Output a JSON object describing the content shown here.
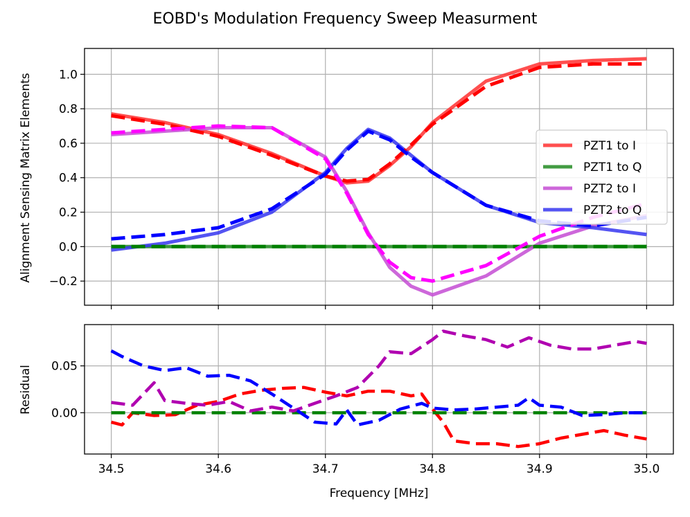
{
  "chart_data": [
    {
      "type": "line",
      "title": "EOBD's Modulation Frequency Sweep Measurment",
      "xlabel": "",
      "ylabel": "Alignment Sensing Matrix Elements",
      "xlim": [
        34.475,
        35.025
      ],
      "ylim": [
        -0.34,
        1.15
      ],
      "grid": true,
      "legend_position": "center-right",
      "xticks": [
        34.5,
        34.6,
        34.7,
        34.8,
        34.9,
        35.0
      ],
      "xtick_labels": [
        "34.5",
        "34.6",
        "34.7",
        "34.8",
        "34.9",
        "35.0"
      ],
      "yticks": [
        -0.2,
        0.0,
        0.2,
        0.4,
        0.6,
        0.8,
        1.0
      ],
      "ytick_labels": [
        "−0.2",
        "0.0",
        "0.2",
        "0.4",
        "0.6",
        "0.8",
        "1.0"
      ],
      "x": [
        34.5,
        34.55,
        34.6,
        34.65,
        34.7,
        34.72,
        34.74,
        34.76,
        34.78,
        34.8,
        34.85,
        34.9,
        34.95,
        35.0
      ],
      "series": [
        {
          "name": "PZT1 to I",
          "legend": true,
          "style": "solid",
          "color": "#ff3030",
          "values": [
            0.77,
            0.72,
            0.65,
            0.54,
            0.41,
            0.37,
            0.38,
            0.47,
            0.58,
            0.72,
            0.96,
            1.06,
            1.08,
            1.09
          ]
        },
        {
          "name": "PZT1 to Q",
          "legend": true,
          "style": "solid",
          "color": "#228b22",
          "values": [
            0.0,
            0.0,
            0.0,
            0.0,
            0.0,
            0.0,
            0.0,
            0.0,
            0.0,
            0.0,
            0.0,
            0.0,
            0.0,
            0.0
          ]
        },
        {
          "name": "PZT2 to I",
          "legend": true,
          "style": "solid",
          "color": "#c44cd4",
          "values": [
            0.65,
            0.67,
            0.69,
            0.69,
            0.52,
            0.32,
            0.08,
            -0.12,
            -0.23,
            -0.28,
            -0.17,
            0.02,
            0.12,
            0.18
          ]
        },
        {
          "name": "PZT2 to Q",
          "legend": true,
          "style": "solid",
          "color": "#3636f0",
          "values": [
            -0.02,
            0.02,
            0.08,
            0.2,
            0.43,
            0.57,
            0.68,
            0.63,
            0.53,
            0.43,
            0.24,
            0.14,
            0.11,
            0.07
          ]
        },
        {
          "name": "PZT1 to I fit",
          "legend": false,
          "style": "dashed",
          "color": "#ff0000",
          "values": [
            0.76,
            0.71,
            0.64,
            0.53,
            0.41,
            0.38,
            0.39,
            0.48,
            0.59,
            0.71,
            0.93,
            1.04,
            1.06,
            1.06
          ]
        },
        {
          "name": "PZT1 to Q fit",
          "legend": false,
          "style": "dashed",
          "color": "#008000",
          "values": [
            0.0,
            0.0,
            0.0,
            0.0,
            0.0,
            0.0,
            0.0,
            0.0,
            0.0,
            0.0,
            0.0,
            0.0,
            0.0,
            0.0
          ]
        },
        {
          "name": "PZT2 to I fit",
          "legend": false,
          "style": "dashed",
          "color": "#ff00ff",
          "values": [
            0.66,
            0.68,
            0.7,
            0.69,
            0.51,
            0.31,
            0.07,
            -0.09,
            -0.18,
            -0.2,
            -0.11,
            0.06,
            0.17,
            0.25
          ]
        },
        {
          "name": "PZT2 to Q fit",
          "legend": false,
          "style": "dashed",
          "color": "#0000ff",
          "values": [
            0.045,
            0.07,
            0.11,
            0.22,
            0.42,
            0.56,
            0.67,
            0.62,
            0.52,
            0.43,
            0.24,
            0.15,
            0.12,
            0.17
          ]
        }
      ]
    },
    {
      "type": "line",
      "title": "",
      "xlabel": "Frequency [MHz]",
      "ylabel": "Residual",
      "xlim": [
        34.475,
        35.025
      ],
      "ylim": [
        -0.044,
        0.094
      ],
      "grid": true,
      "xticks": [
        34.5,
        34.6,
        34.7,
        34.8,
        34.9,
        35.0
      ],
      "xtick_labels": [
        "34.5",
        "34.6",
        "34.7",
        "34.8",
        "34.9",
        "35.0"
      ],
      "yticks": [
        0.0,
        0.05
      ],
      "ytick_labels": [
        "0.00",
        "0.05"
      ],
      "series": [
        {
          "name": "PZT1 to I residual",
          "style": "dashed",
          "color": "#ff0000",
          "x": [
            34.5,
            34.51,
            34.52,
            34.54,
            34.56,
            34.58,
            34.6,
            34.62,
            34.64,
            34.66,
            34.68,
            34.7,
            34.72,
            34.74,
            34.76,
            34.78,
            34.79,
            34.8,
            34.81,
            34.82,
            34.84,
            34.86,
            34.88,
            34.9,
            34.92,
            34.94,
            34.96,
            34.98,
            35.0
          ],
          "values": [
            -0.01,
            -0.013,
            0.0,
            -0.003,
            -0.002,
            0.008,
            0.012,
            0.02,
            0.024,
            0.026,
            0.027,
            0.022,
            0.018,
            0.023,
            0.023,
            0.018,
            0.02,
            0.004,
            -0.01,
            -0.03,
            -0.033,
            -0.033,
            -0.036,
            -0.033,
            -0.027,
            -0.023,
            -0.019,
            -0.024,
            -0.028
          ]
        },
        {
          "name": "PZT1 to Q residual",
          "style": "dashed",
          "color": "#008000",
          "x": [
            34.5,
            35.0
          ],
          "values": [
            0.0,
            0.0
          ]
        },
        {
          "name": "PZT2 to I residual",
          "style": "dashed",
          "color": "#b000b0",
          "x": [
            34.5,
            34.52,
            34.54,
            34.55,
            34.57,
            34.59,
            34.61,
            34.63,
            34.65,
            34.67,
            34.69,
            34.71,
            34.73,
            34.75,
            34.76,
            34.78,
            34.8,
            34.81,
            34.83,
            34.85,
            34.87,
            34.89,
            34.91,
            34.93,
            34.95,
            34.97,
            34.99,
            35.0
          ],
          "values": [
            0.011,
            0.008,
            0.032,
            0.013,
            0.01,
            0.008,
            0.012,
            0.002,
            0.006,
            0.002,
            0.01,
            0.018,
            0.027,
            0.05,
            0.065,
            0.063,
            0.078,
            0.087,
            0.082,
            0.078,
            0.07,
            0.08,
            0.072,
            0.068,
            0.068,
            0.072,
            0.076,
            0.074
          ]
        },
        {
          "name": "PZT2 to Q residual",
          "style": "dashed",
          "color": "#0000ff",
          "x": [
            34.5,
            34.51,
            34.53,
            34.55,
            34.57,
            34.59,
            34.61,
            34.63,
            34.65,
            34.67,
            34.69,
            34.71,
            34.72,
            34.73,
            34.75,
            34.77,
            34.79,
            34.8,
            34.82,
            34.84,
            34.86,
            34.88,
            34.89,
            34.9,
            34.92,
            34.94,
            34.96,
            34.98,
            35.0
          ],
          "values": [
            0.066,
            0.06,
            0.05,
            0.045,
            0.048,
            0.039,
            0.04,
            0.034,
            0.02,
            0.005,
            -0.01,
            -0.012,
            0.003,
            -0.013,
            -0.008,
            0.004,
            0.01,
            0.005,
            0.003,
            0.004,
            0.006,
            0.008,
            0.016,
            0.008,
            0.006,
            -0.003,
            -0.002,
            0.0,
            0.0
          ]
        }
      ]
    }
  ]
}
